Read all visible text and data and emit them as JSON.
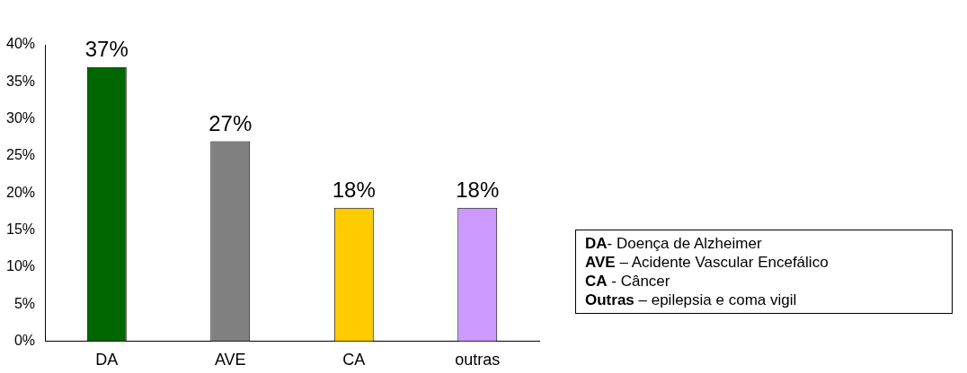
{
  "chart_data": {
    "type": "bar",
    "categories": [
      "DA",
      "AVE",
      "CA",
      "outras"
    ],
    "values": [
      37,
      27,
      18,
      18
    ],
    "colors": [
      "#006600",
      "#808080",
      "#ffcc00",
      "#cc99ff"
    ],
    "value_labels": [
      "37%",
      "27%",
      "18%",
      "18%"
    ],
    "ylim": [
      0,
      40
    ],
    "yticks": [
      {
        "value": 0,
        "label": "0%"
      },
      {
        "value": 5,
        "label": "5%"
      },
      {
        "value": 10,
        "label": "10%"
      },
      {
        "value": 15,
        "label": "15%"
      },
      {
        "value": 20,
        "label": "20%"
      },
      {
        "value": 25,
        "label": "25%"
      },
      {
        "value": 30,
        "label": "30%"
      },
      {
        "value": 35,
        "label": "35%"
      },
      {
        "value": 40,
        "label": "40%"
      }
    ],
    "grid": false,
    "legend": false,
    "annotations": [
      "DA- Doença de Alzheimer",
      "AVE – Acidente Vascular Encefálico",
      "CA - Câncer",
      "Outras – epilepsia e coma vigil"
    ]
  }
}
